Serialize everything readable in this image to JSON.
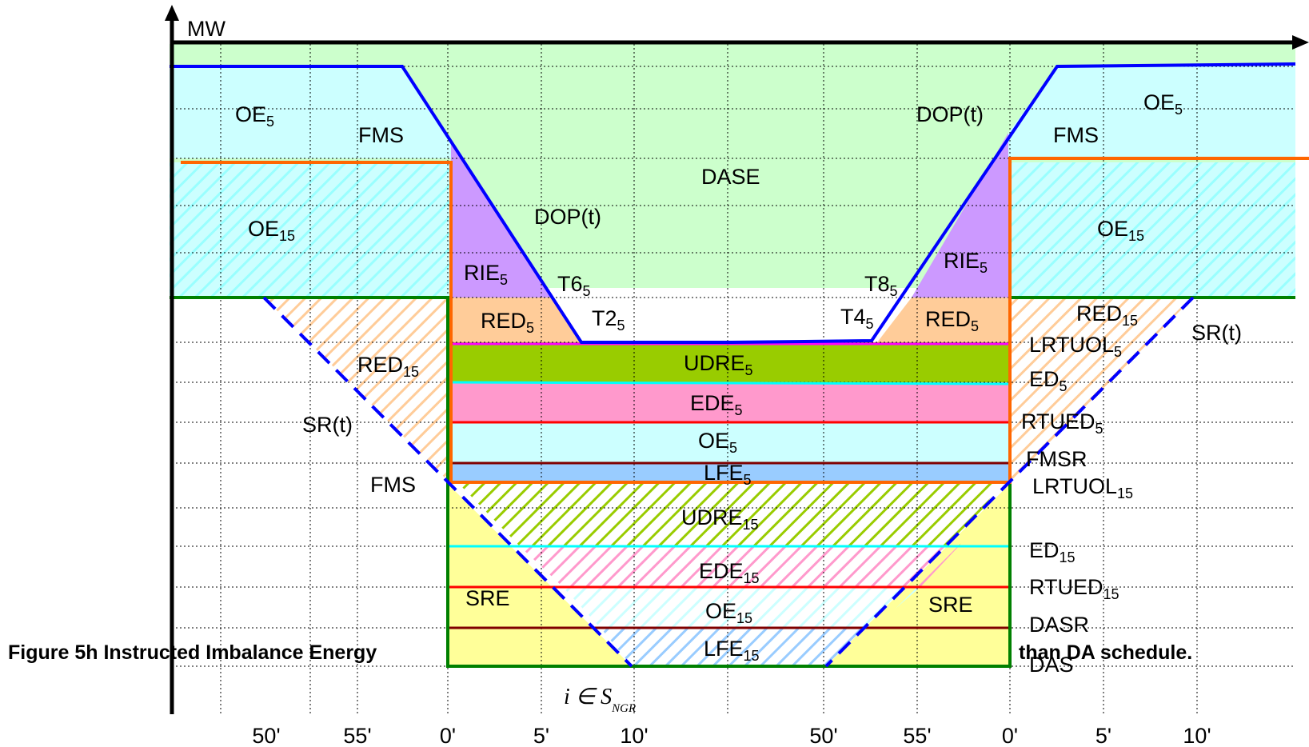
{
  "axis": {
    "y_label": "MW"
  },
  "ticks": [
    "50'",
    "55'",
    "0'",
    "5'",
    "10'",
    "50'",
    "55'",
    "0'",
    "5'",
    "10'"
  ],
  "caption": {
    "left": "Figure 5h Instructed Imbalance Energy",
    "right": "than DA schedule."
  },
  "math": {
    "symbol": "i ∈ S",
    "subscript": "NGR"
  },
  "labels": {
    "oe5_left": {
      "base": "OE",
      "sub": "5"
    },
    "oe5_right": {
      "base": "OE",
      "sub": "5"
    },
    "oe15_left": {
      "base": "OE",
      "sub": "15"
    },
    "oe15_right": {
      "base": "OE",
      "sub": "15"
    },
    "fms_left_top": {
      "base": "FMS"
    },
    "fms_right_top": {
      "base": "FMS"
    },
    "fms_left_bottom": {
      "base": "FMS"
    },
    "dop_center": {
      "base": "DOP(t)"
    },
    "dop_right": {
      "base": "DOP(t)"
    },
    "dase": {
      "base": "DASE"
    },
    "rie5_left": {
      "base": "RIE",
      "sub": "5"
    },
    "rie5_right": {
      "base": "RIE",
      "sub": "5"
    },
    "t6": {
      "base": "T6",
      "sub": "5"
    },
    "t8": {
      "base": "T8",
      "sub": "5"
    },
    "t2": {
      "base": "T2",
      "sub": "5"
    },
    "t4": {
      "base": "T4",
      "sub": "5"
    },
    "red5_left": {
      "base": "RED",
      "sub": "5"
    },
    "red5_right": {
      "base": "RED",
      "sub": "5"
    },
    "red15_left": {
      "base": "RED",
      "sub": "15"
    },
    "red15_right": {
      "base": "RED",
      "sub": "15"
    },
    "sr_left": {
      "base": "SR(t)"
    },
    "sr_right": {
      "base": "SR(t)"
    },
    "udre5": {
      "base": "UDRE",
      "sub": "5"
    },
    "ede5": {
      "base": "EDE",
      "sub": "5"
    },
    "oe5_band": {
      "base": "OE",
      "sub": "5"
    },
    "lfe5": {
      "base": "LFE",
      "sub": "5"
    },
    "udre15": {
      "base": "UDRE",
      "sub": "15"
    },
    "ede15": {
      "base": "EDE",
      "sub": "15"
    },
    "oe15_band": {
      "base": "OE",
      "sub": "15"
    },
    "lfe15": {
      "base": "LFE",
      "sub": "15"
    },
    "sre_left": {
      "base": "SRE"
    },
    "sre_right": {
      "base": "SRE"
    },
    "lrtuol5": {
      "base": "LRTUOL",
      "sub": "5"
    },
    "ed5": {
      "base": "ED",
      "sub": "5"
    },
    "rtued5": {
      "base": "RTUED",
      "sub": "5"
    },
    "fmsr": {
      "base": "FMSR"
    },
    "lrtuol15": {
      "base": "LRTUOL",
      "sub": "15"
    },
    "ed15": {
      "base": "ED",
      "sub": "15"
    },
    "rtued15": {
      "base": "RTUED",
      "sub": "15"
    },
    "dasr": {
      "base": "DASR"
    },
    "das": {
      "base": "DAS"
    }
  },
  "colors": {
    "dase_green": "#ccffcc",
    "oe_cyan": "#ccffff",
    "rie_purple": "#cc99ff",
    "red_orange": "#ffcc99",
    "udre_green": "#99cc00",
    "ede_pink": "#ff99cc",
    "lfe_blue": "#99ccff",
    "sre_yellow": "#ffff99",
    "dop_blue": "#0000ff",
    "da_orange": "#ff6600",
    "das_green": "#008000",
    "cap_magenta": "#ff00ff",
    "ed_cyan": "#00ffff",
    "rtued_red": "#ff0000",
    "fmsr_brown": "#800000"
  }
}
